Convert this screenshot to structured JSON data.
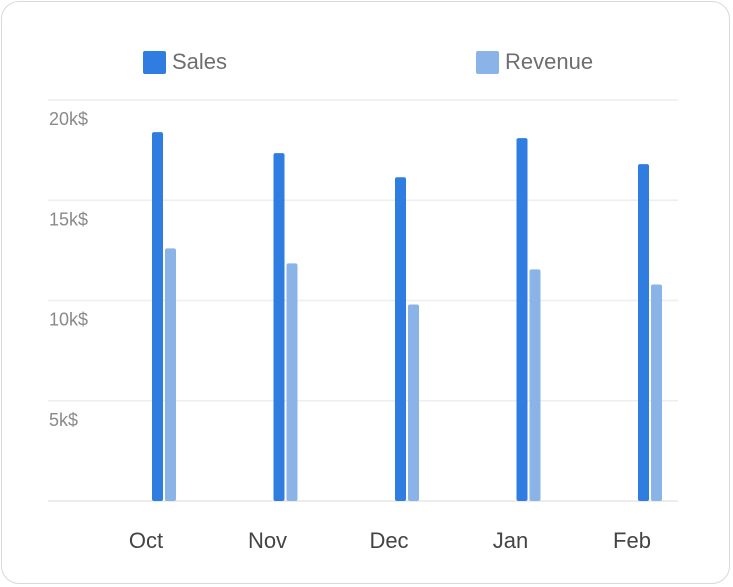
{
  "colors": {
    "sales": "#2f7de1",
    "revenue": "#8ab4e8",
    "grid": "#eeeeee",
    "axis": "#e6e6e6"
  },
  "legend": [
    {
      "label": "Sales",
      "color": "#2f7de1"
    },
    {
      "label": "Revenue",
      "color": "#8ab4e8"
    }
  ],
  "chart_data": {
    "type": "bar",
    "categories": [
      "Oct",
      "Nov",
      "Dec",
      "Jan",
      "Feb"
    ],
    "series": [
      {
        "name": "Sales",
        "values": [
          18400,
          17350,
          16150,
          18100,
          16800
        ]
      },
      {
        "name": "Revenue",
        "values": [
          12600,
          11850,
          9800,
          11550,
          10800
        ]
      }
    ],
    "ylim": [
      0,
      20000
    ],
    "yticks": [
      {
        "value": 5000,
        "label": "5k$"
      },
      {
        "value": 10000,
        "label": "10k$"
      },
      {
        "value": 15000,
        "label": "15k$"
      },
      {
        "value": 20000,
        "label": "20k$"
      }
    ],
    "grid": true,
    "legend_position": "top"
  }
}
